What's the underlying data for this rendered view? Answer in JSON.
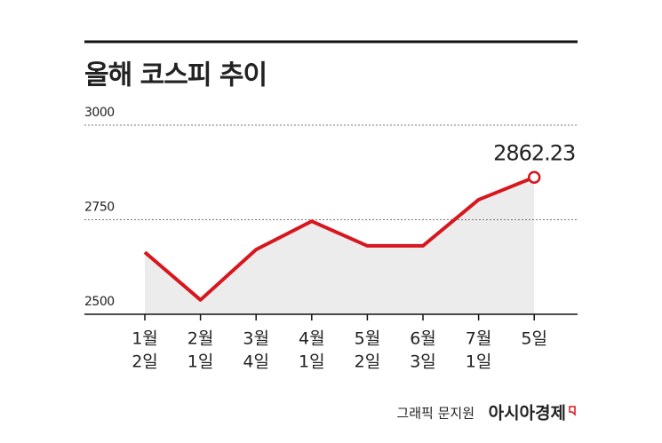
{
  "chart_data": {
    "type": "line",
    "title": "올해 코스피 추이",
    "categories": [
      [
        "1월",
        "2일"
      ],
      [
        "2월",
        "1일"
      ],
      [
        "3월",
        "4일"
      ],
      [
        "4월",
        "1일"
      ],
      [
        "5월",
        "2일"
      ],
      [
        "6월",
        "3일"
      ],
      [
        "7월",
        "1일"
      ],
      [
        "5일"
      ]
    ],
    "series": [
      {
        "name": "코스피",
        "color": "#d7161e",
        "values": [
          2664,
          2538,
          2671,
          2746,
          2681,
          2681,
          2803,
          2862.23
        ]
      }
    ],
    "ylim": [
      2500,
      3000
    ],
    "yticks": [
      2500,
      2750,
      3000
    ],
    "grid": true,
    "credit": "그래픽 문지원",
    "source": "아시아경제"
  }
}
